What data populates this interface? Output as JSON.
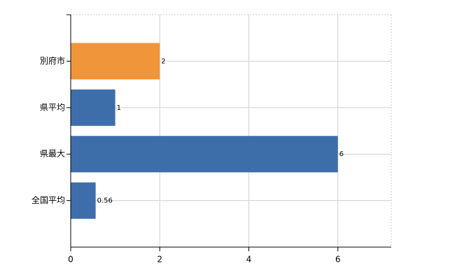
{
  "chart_data": {
    "type": "barh",
    "categories": [
      "別府市",
      "県平均",
      "県最大",
      "全国平均"
    ],
    "values": [
      2,
      1,
      6,
      0.56
    ],
    "colors": [
      "#f0953a",
      "#3d6eaa",
      "#3d6eaa",
      "#3d6eaa"
    ],
    "xlim": [
      0,
      7.2
    ],
    "xticks": [
      0,
      2,
      4,
      6
    ],
    "grid": true
  }
}
